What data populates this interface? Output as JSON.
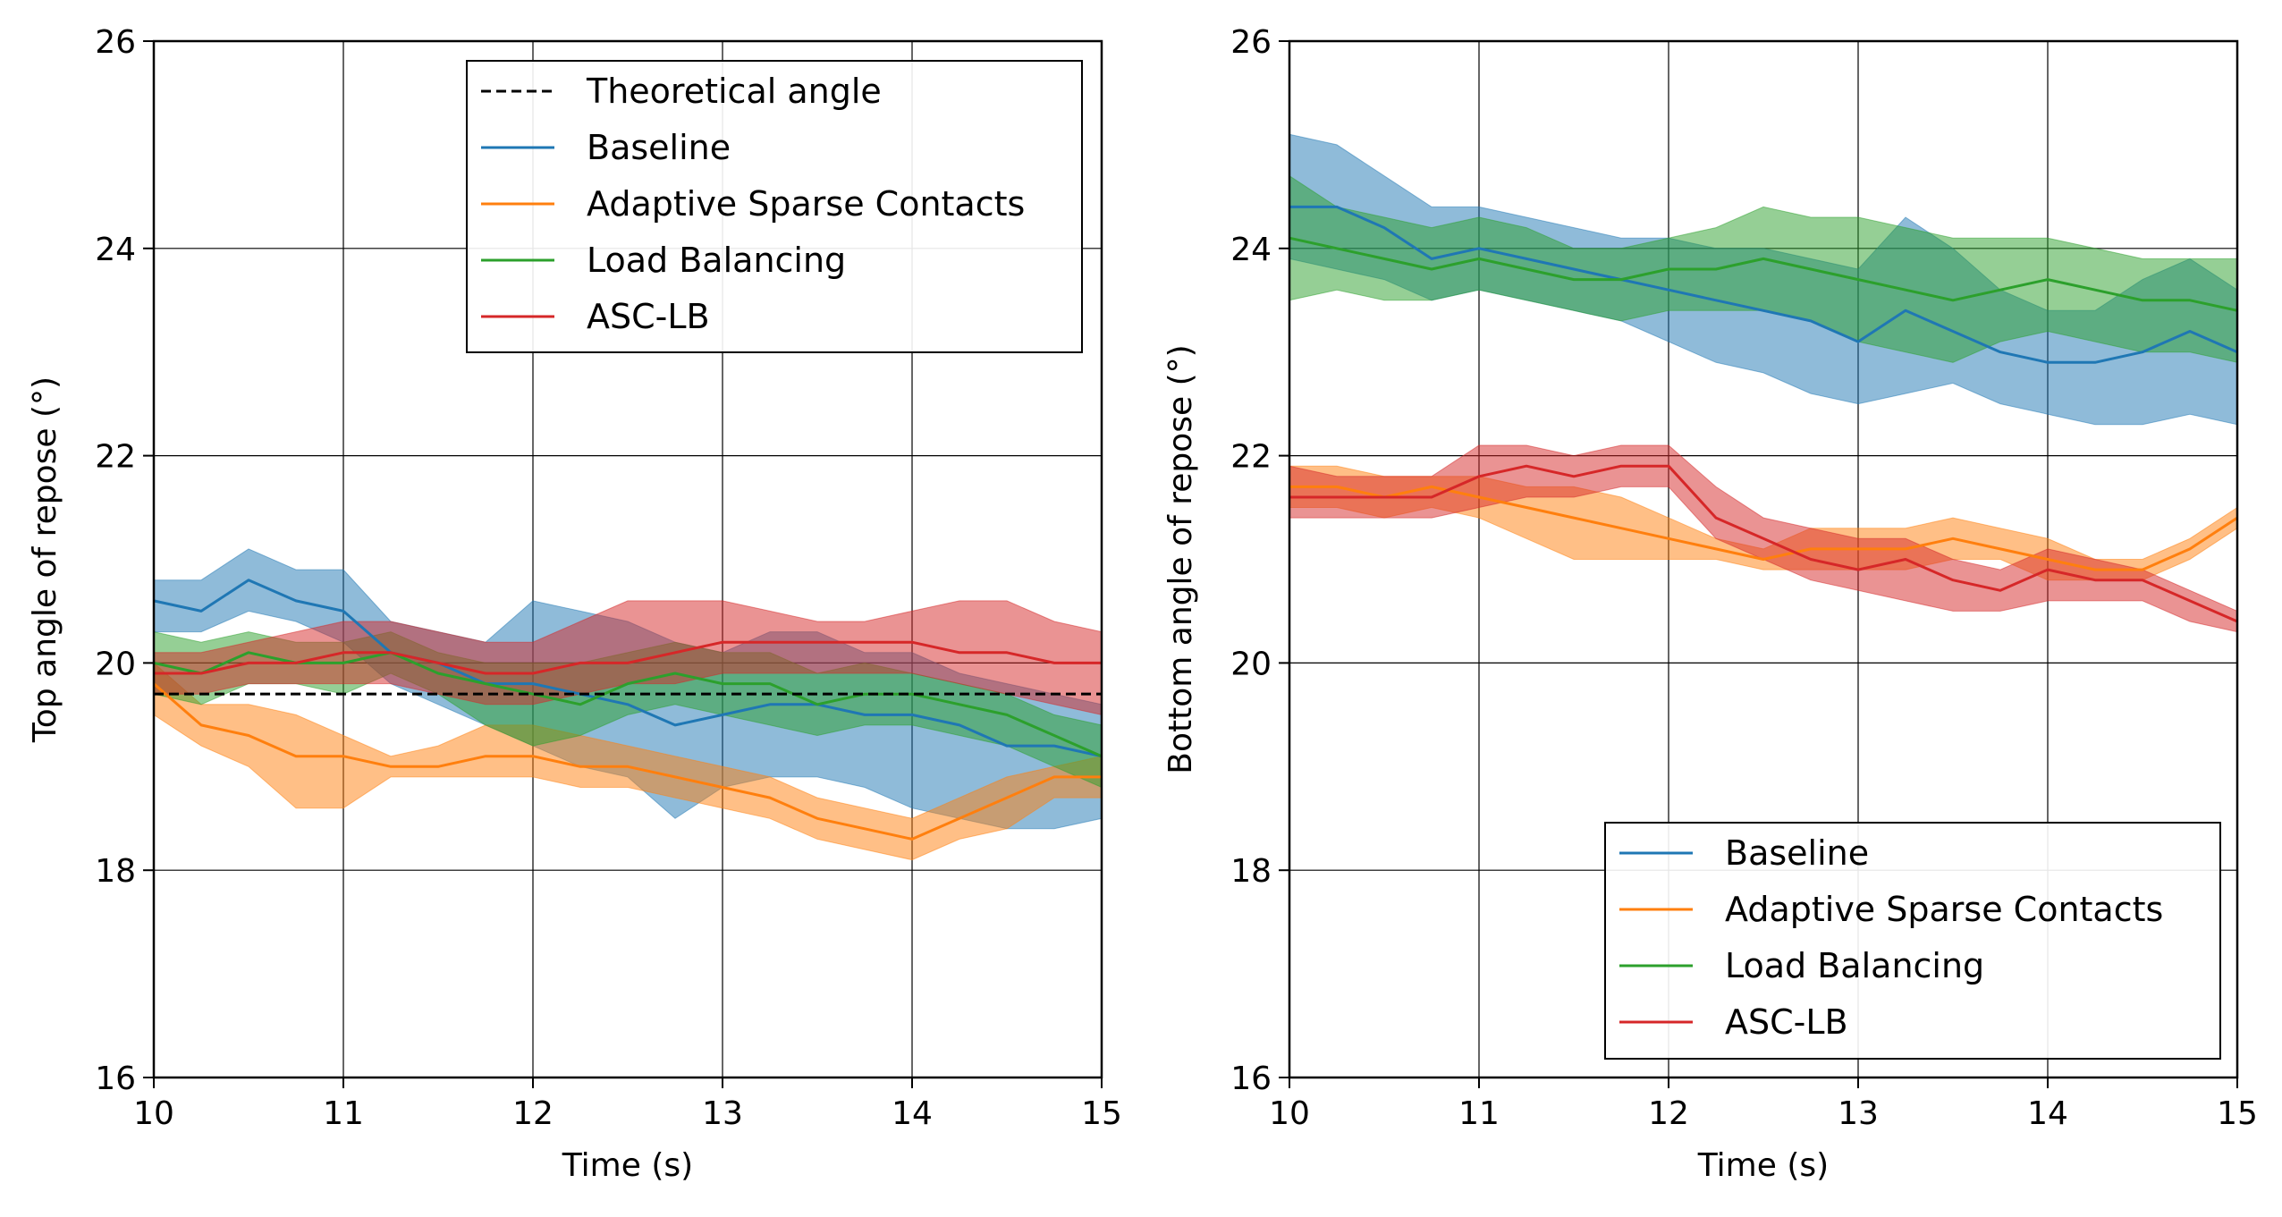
{
  "colors": {
    "baseline": "#1f77b4",
    "asc": "#ff7f0e",
    "lb": "#2ca02c",
    "asclb": "#d62728",
    "theoretical": "#000000"
  },
  "chart_data": [
    {
      "type": "line",
      "xlabel": "Time (s)",
      "ylabel": "Top angle of repose (°)",
      "xlim": [
        10,
        15
      ],
      "ylim": [
        16,
        26
      ],
      "xticks": [
        10,
        11,
        12,
        13,
        14,
        15
      ],
      "yticks": [
        16,
        18,
        20,
        22,
        24,
        26
      ],
      "grid": true,
      "legend_position": "top-right",
      "reference_line": {
        "name": "Theoretical angle",
        "y": 19.7,
        "style": "dashed"
      },
      "x": [
        10.0,
        10.25,
        10.5,
        10.75,
        11.0,
        11.25,
        11.5,
        11.75,
        12.0,
        12.25,
        12.5,
        12.75,
        13.0,
        13.25,
        13.5,
        13.75,
        14.0,
        14.25,
        14.5,
        14.75,
        15.0
      ],
      "series": [
        {
          "name": "Baseline",
          "color_key": "baseline",
          "values": [
            20.6,
            20.5,
            20.8,
            20.6,
            20.5,
            20.1,
            20.0,
            19.8,
            19.8,
            19.7,
            19.6,
            19.4,
            19.5,
            19.6,
            19.6,
            19.5,
            19.5,
            19.4,
            19.2,
            19.2,
            19.1
          ],
          "upper": [
            20.8,
            20.8,
            21.1,
            20.9,
            20.9,
            20.4,
            20.3,
            20.2,
            20.6,
            20.5,
            20.4,
            20.2,
            20.1,
            20.3,
            20.3,
            20.1,
            20.1,
            19.9,
            19.8,
            19.7,
            19.6
          ],
          "lower": [
            20.3,
            20.3,
            20.5,
            20.4,
            20.2,
            19.8,
            19.6,
            19.4,
            19.2,
            19.0,
            18.9,
            18.5,
            18.8,
            18.9,
            18.9,
            18.8,
            18.6,
            18.5,
            18.4,
            18.4,
            18.5
          ]
        },
        {
          "name": "Adaptive Sparse Contacts",
          "color_key": "asc",
          "values": [
            19.8,
            19.4,
            19.3,
            19.1,
            19.1,
            19.0,
            19.0,
            19.1,
            19.1,
            19.0,
            19.0,
            18.9,
            18.8,
            18.7,
            18.5,
            18.4,
            18.3,
            18.5,
            18.7,
            18.9,
            18.9
          ],
          "upper": [
            20.0,
            19.6,
            19.6,
            19.5,
            19.3,
            19.1,
            19.2,
            19.4,
            19.4,
            19.3,
            19.2,
            19.1,
            19.0,
            18.9,
            18.7,
            18.6,
            18.5,
            18.7,
            18.9,
            19.0,
            19.1
          ],
          "lower": [
            19.5,
            19.2,
            19.0,
            18.6,
            18.6,
            18.9,
            18.9,
            18.9,
            18.9,
            18.8,
            18.8,
            18.7,
            18.6,
            18.5,
            18.3,
            18.2,
            18.1,
            18.3,
            18.4,
            18.7,
            18.7
          ]
        },
        {
          "name": "Load Balancing",
          "color_key": "lb",
          "values": [
            20.0,
            19.9,
            20.1,
            20.0,
            20.0,
            20.1,
            19.9,
            19.8,
            19.7,
            19.6,
            19.8,
            19.9,
            19.8,
            19.8,
            19.6,
            19.7,
            19.7,
            19.6,
            19.5,
            19.3,
            19.1
          ],
          "upper": [
            20.3,
            20.2,
            20.3,
            20.2,
            20.2,
            20.3,
            20.1,
            20.0,
            20.0,
            20.0,
            20.1,
            20.2,
            20.1,
            20.1,
            19.9,
            20.0,
            19.9,
            19.8,
            19.7,
            19.5,
            19.4
          ],
          "lower": [
            19.7,
            19.6,
            19.8,
            19.8,
            19.7,
            19.9,
            19.7,
            19.4,
            19.2,
            19.3,
            19.5,
            19.6,
            19.5,
            19.4,
            19.3,
            19.4,
            19.4,
            19.3,
            19.2,
            19.0,
            18.8
          ]
        },
        {
          "name": "ASC-LB",
          "color_key": "asclb",
          "values": [
            19.9,
            19.9,
            20.0,
            20.0,
            20.1,
            20.1,
            20.0,
            19.9,
            19.9,
            20.0,
            20.0,
            20.1,
            20.2,
            20.2,
            20.2,
            20.2,
            20.2,
            20.1,
            20.1,
            20.0,
            20.0
          ],
          "upper": [
            20.1,
            20.1,
            20.2,
            20.3,
            20.4,
            20.4,
            20.3,
            20.2,
            20.2,
            20.4,
            20.6,
            20.6,
            20.6,
            20.5,
            20.4,
            20.4,
            20.5,
            20.6,
            20.6,
            20.4,
            20.3
          ],
          "lower": [
            19.7,
            19.7,
            19.8,
            19.8,
            19.8,
            19.8,
            19.7,
            19.6,
            19.6,
            19.7,
            19.8,
            19.8,
            19.9,
            19.9,
            19.9,
            19.9,
            19.9,
            19.8,
            19.7,
            19.6,
            19.5
          ]
        }
      ]
    },
    {
      "type": "line",
      "xlabel": "Time (s)",
      "ylabel": "Bottom angle of repose (°)",
      "xlim": [
        10,
        15
      ],
      "ylim": [
        16,
        26
      ],
      "xticks": [
        10,
        11,
        12,
        13,
        14,
        15
      ],
      "yticks": [
        16,
        18,
        20,
        22,
        24,
        26
      ],
      "grid": true,
      "legend_position": "bottom-right",
      "x": [
        10.0,
        10.25,
        10.5,
        10.75,
        11.0,
        11.25,
        11.5,
        11.75,
        12.0,
        12.25,
        12.5,
        12.75,
        13.0,
        13.25,
        13.5,
        13.75,
        14.0,
        14.25,
        14.5,
        14.75,
        15.0
      ],
      "series": [
        {
          "name": "Baseline",
          "color_key": "baseline",
          "values": [
            24.4,
            24.4,
            24.2,
            23.9,
            24.0,
            23.9,
            23.8,
            23.7,
            23.6,
            23.5,
            23.4,
            23.3,
            23.1,
            23.4,
            23.2,
            23.0,
            22.9,
            22.9,
            23.0,
            23.2,
            23.0
          ],
          "upper": [
            25.1,
            25.0,
            24.7,
            24.4,
            24.4,
            24.3,
            24.2,
            24.1,
            24.1,
            24.0,
            24.0,
            23.9,
            23.8,
            24.3,
            24.0,
            23.6,
            23.4,
            23.4,
            23.7,
            23.9,
            23.6
          ],
          "lower": [
            23.9,
            23.8,
            23.7,
            23.5,
            23.6,
            23.5,
            23.4,
            23.3,
            23.1,
            22.9,
            22.8,
            22.6,
            22.5,
            22.6,
            22.7,
            22.5,
            22.4,
            22.3,
            22.3,
            22.4,
            22.3
          ]
        },
        {
          "name": "Adaptive Sparse Contacts",
          "color_key": "asc",
          "values": [
            21.7,
            21.7,
            21.6,
            21.7,
            21.6,
            21.5,
            21.4,
            21.3,
            21.2,
            21.1,
            21.0,
            21.1,
            21.1,
            21.1,
            21.2,
            21.1,
            21.0,
            20.9,
            20.9,
            21.1,
            21.4
          ],
          "upper": [
            21.9,
            21.9,
            21.8,
            21.8,
            21.8,
            21.7,
            21.7,
            21.6,
            21.4,
            21.2,
            21.1,
            21.3,
            21.3,
            21.3,
            21.4,
            21.3,
            21.2,
            21.0,
            21.0,
            21.2,
            21.5
          ],
          "lower": [
            21.5,
            21.5,
            21.4,
            21.5,
            21.4,
            21.2,
            21.0,
            21.0,
            21.0,
            21.0,
            20.9,
            20.9,
            20.9,
            20.9,
            21.0,
            21.0,
            20.8,
            20.8,
            20.8,
            21.0,
            21.3
          ]
        },
        {
          "name": "Load Balancing",
          "color_key": "lb",
          "values": [
            24.1,
            24.0,
            23.9,
            23.8,
            23.9,
            23.8,
            23.7,
            23.7,
            23.8,
            23.8,
            23.9,
            23.8,
            23.7,
            23.6,
            23.5,
            23.6,
            23.7,
            23.6,
            23.5,
            23.5,
            23.4
          ],
          "upper": [
            24.7,
            24.4,
            24.3,
            24.2,
            24.3,
            24.2,
            24.0,
            24.0,
            24.1,
            24.2,
            24.4,
            24.3,
            24.3,
            24.2,
            24.1,
            24.1,
            24.1,
            24.0,
            23.9,
            23.9,
            23.9
          ],
          "lower": [
            23.5,
            23.6,
            23.5,
            23.5,
            23.6,
            23.5,
            23.4,
            23.3,
            23.4,
            23.4,
            23.4,
            23.3,
            23.1,
            23.0,
            22.9,
            23.1,
            23.2,
            23.1,
            23.0,
            23.0,
            22.9
          ]
        },
        {
          "name": "ASC-LB",
          "color_key": "asclb",
          "values": [
            21.6,
            21.6,
            21.6,
            21.6,
            21.8,
            21.9,
            21.8,
            21.9,
            21.9,
            21.4,
            21.2,
            21.0,
            20.9,
            21.0,
            20.8,
            20.7,
            20.9,
            20.8,
            20.8,
            20.6,
            20.4
          ],
          "upper": [
            21.9,
            21.8,
            21.8,
            21.8,
            22.1,
            22.1,
            22.0,
            22.1,
            22.1,
            21.7,
            21.4,
            21.3,
            21.2,
            21.2,
            21.0,
            20.9,
            21.1,
            21.0,
            20.9,
            20.7,
            20.5
          ],
          "lower": [
            21.4,
            21.4,
            21.4,
            21.4,
            21.5,
            21.6,
            21.6,
            21.7,
            21.7,
            21.2,
            21.0,
            20.8,
            20.7,
            20.6,
            20.5,
            20.5,
            20.6,
            20.6,
            20.6,
            20.4,
            20.3
          ]
        }
      ]
    }
  ]
}
